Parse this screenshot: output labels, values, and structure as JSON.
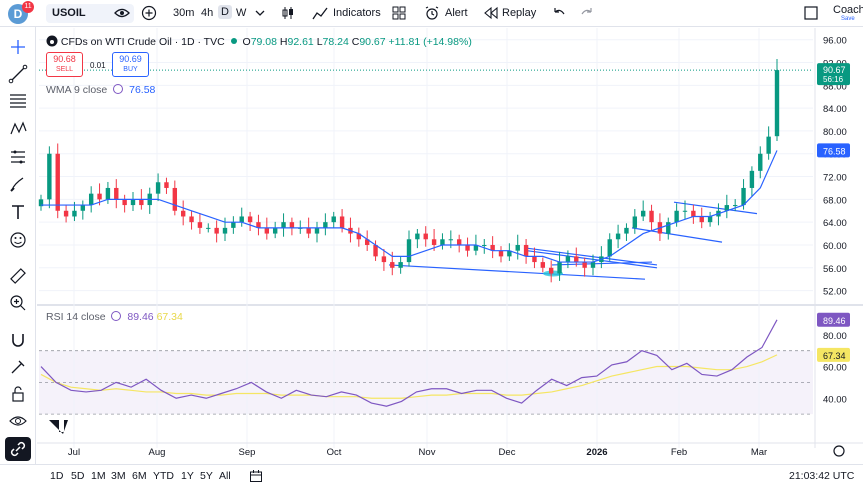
{
  "topbar": {
    "avatar_letter": "D",
    "badge_count": "11",
    "symbol": "USOIL",
    "intervals": [
      "30m",
      "4h",
      "D",
      "W"
    ],
    "active_interval": "D",
    "indicators_label": "Indicators",
    "alert_label": "Alert",
    "replay_label": "Replay",
    "coach_label": "Coach",
    "coach_sub": "Save"
  },
  "legend": {
    "title": "CFDs on WTI Crude Oil · 1D · TVC",
    "o_label": "O",
    "o_value": "79.08",
    "h_label": "H",
    "h_value": "92.61",
    "l_label": "L",
    "l_value": "78.24",
    "c_label": "C",
    "c_value": "90.67",
    "change": "+11.81 (+14.98%)",
    "sell_price": "90.68",
    "sell_label": "SELL",
    "spread": "0.01",
    "buy_price": "90.69",
    "buy_label": "BUY",
    "wma_label": "WMA 9 close",
    "wma_value": "76.58",
    "rsi_label": "RSI 14 close",
    "rsi_value": "89.46",
    "rsi_ma_value": "67.34"
  },
  "price_axis": {
    "ticks": [
      "96.00",
      "92.00",
      "88.00",
      "84.00",
      "80.00",
      "76.00",
      "72.00",
      "68.00",
      "64.00",
      "60.00",
      "56.00",
      "52.00"
    ],
    "last_price": "90.67",
    "countdown": "56:16",
    "wma_tag": "76.58"
  },
  "rsi_axis": {
    "ticks": [
      "80.00",
      "60.00",
      "40.00"
    ],
    "rsi_tag": "89.46",
    "ma_tag": "67.34"
  },
  "time_axis": {
    "labels": [
      "Jul",
      "Aug",
      "Sep",
      "Oct",
      "Nov",
      "Dec",
      "2026",
      "Feb",
      "Mar"
    ]
  },
  "bottombar": {
    "ranges": [
      "1D",
      "5D",
      "1M",
      "3M",
      "6M",
      "YTD",
      "1Y",
      "5Y",
      "All"
    ],
    "clock": "21:03:42 UTC"
  },
  "colors": {
    "up": "#089981",
    "down": "#f23645",
    "wma": "#2962ff",
    "rsi": "#7e57c2",
    "rsi_ma": "#f5e663",
    "accent": "#2962ff"
  },
  "chart_data": {
    "type": "candlestick",
    "title": "CFDs on WTI Crude Oil · 1D · TVC",
    "ohlc_last": {
      "open": 79.08,
      "high": 92.61,
      "low": 78.24,
      "close": 90.67
    },
    "ylim": [
      50,
      97
    ],
    "months": [
      "Jul",
      "Aug",
      "Sep",
      "Oct",
      "Nov",
      "Dec",
      "2026",
      "Feb",
      "Mar"
    ],
    "close_path": [
      68,
      76,
      66,
      65,
      66,
      67,
      69,
      68,
      70,
      68,
      67,
      68,
      67,
      69,
      71,
      70,
      66,
      65,
      64,
      63,
      63,
      62,
      63,
      64,
      65,
      64,
      63,
      62,
      63,
      64,
      63,
      63,
      62,
      63,
      64,
      65,
      63,
      62,
      61,
      60,
      58,
      57,
      56,
      57,
      61,
      62,
      61,
      60,
      61,
      61,
      60,
      59,
      60,
      60,
      59,
      58,
      59,
      60,
      58,
      57,
      56,
      55,
      57,
      58,
      57,
      56,
      57,
      58,
      61,
      62,
      63,
      65,
      66,
      64,
      62,
      64,
      66,
      66,
      65,
      64,
      65,
      66,
      67,
      67,
      70,
      73,
      76,
      79,
      90.67
    ],
    "wma9": [
      67,
      67,
      67,
      67,
      68,
      68,
      68,
      68,
      67,
      66,
      65,
      64,
      64,
      63,
      63,
      63,
      63,
      63,
      63,
      62,
      60,
      58,
      58,
      59,
      60,
      60,
      60,
      59,
      59,
      58,
      58,
      57,
      57,
      57,
      58,
      60,
      62,
      63,
      64,
      65,
      65,
      66,
      67,
      70,
      76.58
    ],
    "rsi14": [
      60,
      50,
      45,
      44,
      45,
      50,
      47,
      52,
      45,
      40,
      42,
      40,
      43,
      46,
      50,
      44,
      40,
      45,
      42,
      41,
      44,
      42,
      37,
      35,
      38,
      44,
      46,
      46,
      43,
      45,
      45,
      40,
      37,
      45,
      52,
      48,
      53,
      54,
      61,
      63,
      70,
      67,
      58,
      62,
      55,
      54,
      58,
      66,
      72,
      89.46
    ],
    "rsi_ma": [
      55,
      50,
      47,
      46,
      45,
      46,
      45,
      44,
      44,
      43,
      43,
      42,
      42,
      43,
      43,
      43,
      42,
      42,
      42,
      41,
      41,
      41,
      40,
      40,
      40,
      41,
      42,
      42,
      43,
      43,
      43,
      42,
      42,
      43,
      44,
      46,
      48,
      51,
      54,
      56,
      58,
      60,
      60,
      60,
      59,
      58,
      58,
      60,
      63,
      67.34
    ]
  }
}
